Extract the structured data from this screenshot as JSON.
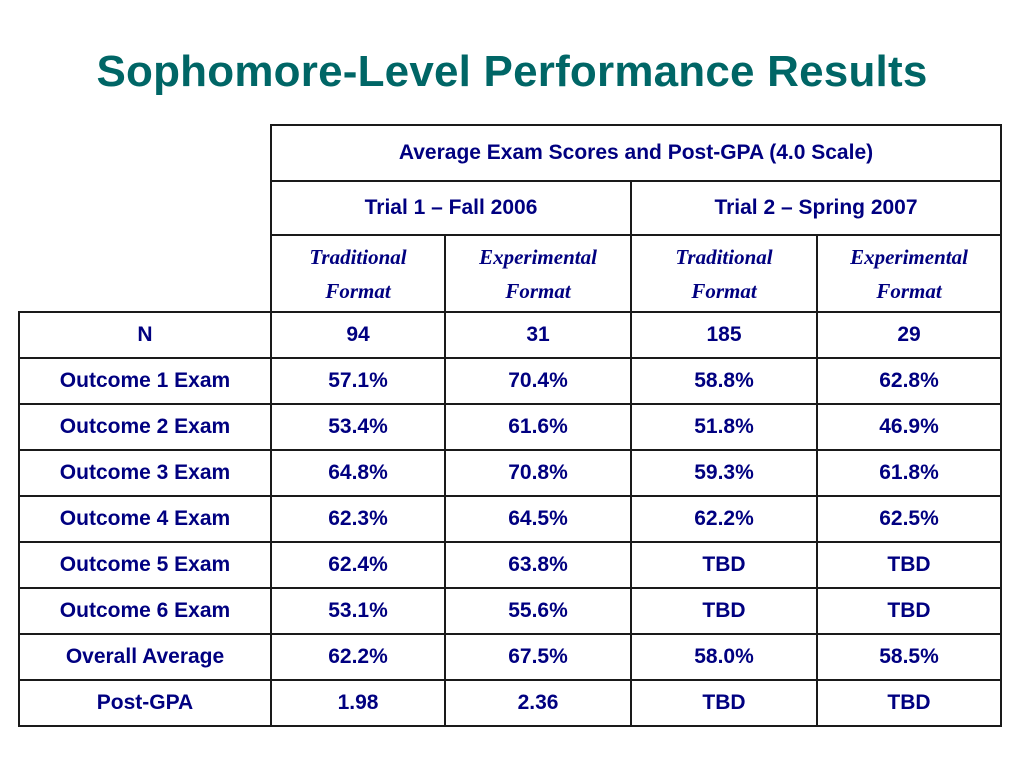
{
  "title": "Sophomore-Level Performance Results",
  "colors": {
    "title": "#006666",
    "text": "#000080",
    "header_highlight": "#ffff99",
    "traditional_highlight": "#66ffff",
    "experimental_highlight": "#99ffcc"
  },
  "table": {
    "main_header": "Average Exam Scores and Post-GPA (4.0 Scale)",
    "trials": [
      "Trial 1 – Fall 2006",
      "Trial 2 – Spring 2007"
    ],
    "formats": [
      {
        "line1": "Traditional",
        "line2": "Format"
      },
      {
        "line1": "Experimental",
        "line2": "Format"
      },
      {
        "line1": "Traditional",
        "line2": "Format"
      },
      {
        "line1": "Experimental",
        "line2": "Format"
      }
    ],
    "rows": [
      {
        "label": "N",
        "values": [
          "94",
          "31",
          "185",
          "29"
        ]
      },
      {
        "label": "Outcome 1 Exam",
        "values": [
          "57.1%",
          "70.4%",
          "58.8%",
          "62.8%"
        ]
      },
      {
        "label": "Outcome 2 Exam",
        "values": [
          "53.4%",
          "61.6%",
          "51.8%",
          "46.9%"
        ]
      },
      {
        "label": "Outcome 3 Exam",
        "values": [
          "64.8%",
          "70.8%",
          "59.3%",
          "61.8%"
        ]
      },
      {
        "label": "Outcome 4 Exam",
        "values": [
          "62.3%",
          "64.5%",
          "62.2%",
          "62.5%"
        ]
      },
      {
        "label": "Outcome 5 Exam",
        "values": [
          "62.4%",
          "63.8%",
          "TBD",
          "TBD"
        ]
      },
      {
        "label": "Outcome 6 Exam",
        "values": [
          "53.1%",
          "55.6%",
          "TBD",
          "TBD"
        ]
      },
      {
        "label": "Overall Average",
        "values": [
          "62.2%",
          "67.5%",
          "58.0%",
          "58.5%"
        ]
      },
      {
        "label": "Post-GPA",
        "values": [
          "1.98",
          "2.36",
          "TBD",
          "TBD"
        ]
      }
    ]
  }
}
